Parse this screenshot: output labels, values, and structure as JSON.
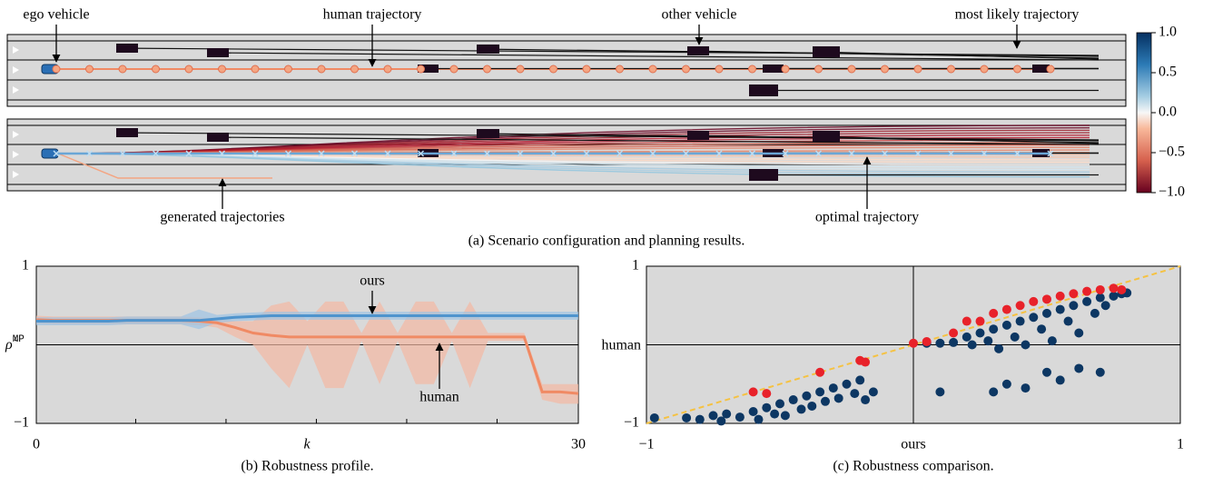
{
  "panel_a": {
    "annotations": [
      "ego vehicle",
      "human trajectory",
      "other vehicle",
      "most likely trajectory",
      "generated trajectories",
      "optimal trajectory"
    ],
    "caption": "(a) Scenario configuration and planning results.",
    "colorbar": {
      "lim": [
        -1,
        1
      ],
      "ticks": [
        {
          "value": 1,
          "label": "1.0"
        },
        0.5,
        {
          "value": 0,
          "label": "0.0"
        },
        {
          "value": -0.5,
          "label": "−0.5"
        },
        {
          "value": -1,
          "label": "−1.0"
        }
      ]
    }
  },
  "chart_data": [
    {
      "type": "line",
      "caption": "(b) Robustness profile.",
      "x_label": "k",
      "y_label": {
        "symbol": "ρ̃",
        "superscript": "MP"
      },
      "annotations": [
        "ours",
        "human"
      ],
      "xlim": [
        0,
        30
      ],
      "ylim": [
        -1,
        1
      ],
      "xticks": [
        0,
        30
      ],
      "xminor": [
        5.5,
        10.5,
        15.5,
        20.5,
        25.5
      ],
      "yticks": [
        {
          "value": -1,
          "label": "−1"
        },
        1
      ],
      "zero_line": true,
      "x": [
        0,
        1,
        2,
        3,
        4,
        5,
        6,
        7,
        8,
        9,
        10,
        11,
        12,
        13,
        14,
        15,
        16,
        17,
        18,
        19,
        20,
        21,
        22,
        23,
        24,
        25,
        26,
        27,
        28,
        29,
        30
      ],
      "series": [
        {
          "name": "ours",
          "color": "#4f94cd",
          "band_color": "#9cc3e4",
          "values": [
            0.3,
            0.3,
            0.3,
            0.3,
            0.3,
            0.31,
            0.31,
            0.31,
            0.31,
            0.31,
            0.33,
            0.35,
            0.36,
            0.37,
            0.37,
            0.37,
            0.37,
            0.37,
            0.37,
            0.37,
            0.37,
            0.37,
            0.37,
            0.37,
            0.37,
            0.37,
            0.37,
            0.37,
            0.37,
            0.37,
            0.37
          ],
          "lower": [
            0.25,
            0.25,
            0.25,
            0.25,
            0.25,
            0.26,
            0.26,
            0.26,
            0.26,
            0.2,
            0.28,
            0.3,
            0.31,
            0.32,
            0.32,
            0.32,
            0.32,
            0.32,
            0.32,
            0.32,
            0.32,
            0.32,
            0.32,
            0.32,
            0.32,
            0.32,
            0.32,
            0.32,
            0.32,
            0.32,
            0.32
          ],
          "upper": [
            0.35,
            0.35,
            0.35,
            0.35,
            0.35,
            0.36,
            0.36,
            0.36,
            0.36,
            0.45,
            0.38,
            0.4,
            0.41,
            0.42,
            0.42,
            0.42,
            0.42,
            0.42,
            0.42,
            0.42,
            0.42,
            0.42,
            0.42,
            0.42,
            0.42,
            0.42,
            0.42,
            0.42,
            0.42,
            0.42,
            0.42
          ]
        },
        {
          "name": "human",
          "color": "#f08a64",
          "band_color": "#f4b8a2",
          "values": [
            0.32,
            0.31,
            0.31,
            0.31,
            0.31,
            0.31,
            0.31,
            0.31,
            0.31,
            0.3,
            0.28,
            0.22,
            0.15,
            0.12,
            0.1,
            0.1,
            0.1,
            0.1,
            0.1,
            0.1,
            0.1,
            0.1,
            0.1,
            0.1,
            0.1,
            0.1,
            0.1,
            0.1,
            -0.6,
            -0.6,
            -0.62
          ],
          "lower": [
            0.27,
            0.26,
            0.26,
            0.26,
            0.26,
            0.26,
            0.26,
            0.26,
            0.26,
            0.25,
            0.22,
            0.1,
            0.0,
            -0.3,
            -0.55,
            0.0,
            -0.55,
            -0.55,
            0.05,
            -0.5,
            0.05,
            -0.5,
            -0.5,
            0.05,
            -0.55,
            0.05,
            0.05,
            0.05,
            -0.7,
            -0.75,
            -0.75
          ],
          "upper": [
            0.37,
            0.36,
            0.36,
            0.36,
            0.36,
            0.36,
            0.36,
            0.36,
            0.36,
            0.35,
            0.33,
            0.3,
            0.3,
            0.5,
            0.55,
            0.3,
            0.55,
            0.55,
            0.15,
            0.55,
            0.15,
            0.55,
            0.55,
            0.15,
            0.55,
            0.15,
            0.15,
            0.15,
            -0.5,
            -0.5,
            -0.5
          ]
        }
      ]
    },
    {
      "type": "scatter",
      "caption": "(c) Robustness comparison.",
      "x_label": "ours",
      "y_label": "human",
      "xlim": [
        -1,
        1
      ],
      "ylim": [
        -1,
        1
      ],
      "xticks": [
        {
          "value": -1,
          "label": "−1"
        },
        1
      ],
      "yticks": [
        {
          "value": -1,
          "label": "−1"
        },
        1
      ],
      "zero_line": true,
      "diagonal": {
        "color": "#f5c242"
      },
      "series": [
        {
          "color": "#0d3763",
          "x": [
            -0.97,
            -0.85,
            -0.8,
            -0.75,
            -0.72,
            -0.7,
            -0.65,
            -0.6,
            -0.58,
            -0.55,
            -0.52,
            -0.5,
            -0.48,
            -0.45,
            -0.42,
            -0.4,
            -0.38,
            -0.35,
            -0.33,
            -0.3,
            -0.28,
            -0.25,
            -0.22,
            -0.2,
            -0.18,
            -0.15,
            0.05,
            0.1,
            0.15,
            0.2,
            0.22,
            0.25,
            0.28,
            0.3,
            0.32,
            0.35,
            0.38,
            0.4,
            0.42,
            0.45,
            0.48,
            0.5,
            0.52,
            0.55,
            0.58,
            0.6,
            0.62,
            0.65,
            0.68,
            0.7,
            0.72,
            0.75,
            0.78,
            0.8,
            0.3,
            0.35,
            0.42,
            0.5,
            0.55,
            0.62,
            0.7,
            0.1
          ],
          "y": [
            -0.93,
            -0.93,
            -0.95,
            -0.9,
            -0.97,
            -0.88,
            -0.92,
            -0.85,
            -0.95,
            -0.8,
            -0.88,
            -0.75,
            -0.9,
            -0.7,
            -0.82,
            -0.65,
            -0.78,
            -0.6,
            -0.72,
            -0.55,
            -0.68,
            -0.5,
            -0.62,
            -0.45,
            -0.7,
            -0.6,
            0.02,
            0.02,
            0.03,
            0.1,
            0.0,
            0.15,
            0.05,
            0.2,
            -0.05,
            0.25,
            0.1,
            0.3,
            0.0,
            0.35,
            0.2,
            0.4,
            0.05,
            0.45,
            0.3,
            0.5,
            0.15,
            0.55,
            0.4,
            0.6,
            0.5,
            0.62,
            0.65,
            0.66,
            -0.6,
            -0.5,
            -0.55,
            -0.35,
            -0.45,
            -0.3,
            -0.35,
            -0.6
          ]
        },
        {
          "color": "#e8222a",
          "x": [
            -0.6,
            -0.55,
            -0.35,
            -0.2,
            -0.18,
            0.0,
            0.05,
            0.15,
            0.2,
            0.25,
            0.3,
            0.35,
            0.4,
            0.45,
            0.5,
            0.55,
            0.6,
            0.65,
            0.7,
            0.75,
            0.78
          ],
          "y": [
            -0.6,
            -0.62,
            -0.35,
            -0.2,
            -0.22,
            0.02,
            0.04,
            0.15,
            0.3,
            0.3,
            0.4,
            0.45,
            0.5,
            0.55,
            0.58,
            0.62,
            0.65,
            0.68,
            0.7,
            0.72,
            0.7
          ]
        }
      ]
    }
  ]
}
